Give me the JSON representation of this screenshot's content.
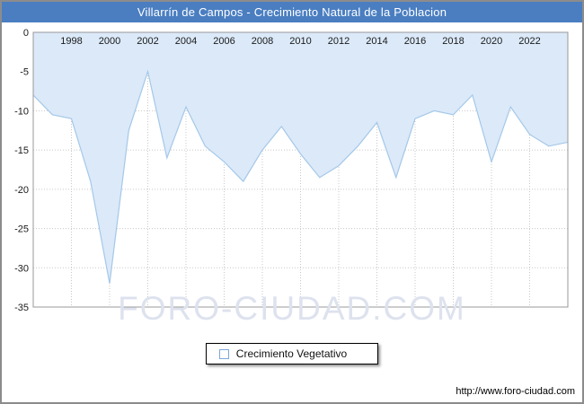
{
  "header": {
    "title": "Villarrín de Campos - Crecimiento Natural de la Poblacion",
    "bg_color": "#4a7ec1"
  },
  "watermark": "FORO-CIUDAD.COM",
  "legend": {
    "label": "Crecimiento Vegetativo"
  },
  "footer": {
    "url": "http://www.foro-ciudad.com"
  },
  "chart_data": {
    "type": "area",
    "title": "Villarrín de Campos - Crecimiento Natural de la Poblacion",
    "series_name": "Crecimiento Vegetativo",
    "x": [
      1996,
      1997,
      1998,
      1999,
      2000,
      2001,
      2002,
      2003,
      2004,
      2005,
      2006,
      2007,
      2008,
      2009,
      2010,
      2011,
      2012,
      2013,
      2014,
      2015,
      2016,
      2017,
      2018,
      2019,
      2020,
      2021,
      2022,
      2023,
      2024
    ],
    "values": [
      -8,
      -10.5,
      -11,
      -19,
      -32,
      -12.5,
      -5,
      -16,
      -9.5,
      -14.5,
      -16.5,
      -19,
      -15,
      -12,
      -15.5,
      -18.5,
      -17,
      -14.5,
      -11.5,
      -18.5,
      -11,
      -10,
      -10.5,
      -8,
      -16.5,
      -9.5,
      -13,
      -14.5,
      -14
    ],
    "xlim": [
      1996,
      2024
    ],
    "ylim": [
      -35,
      0
    ],
    "xticks": [
      1998,
      2000,
      2002,
      2004,
      2006,
      2008,
      2010,
      2012,
      2014,
      2016,
      2018,
      2020,
      2022
    ],
    "yticks": [
      0,
      -5,
      -10,
      -15,
      -20,
      -25,
      -30,
      -35
    ],
    "grid": true,
    "legend_position": "bottom",
    "colors": {
      "fill": "#dbe9f9",
      "line": "#a5c8e8",
      "grid": "#c8c8c8",
      "axis": "#999999",
      "tick_text": "#1a1a1a"
    }
  }
}
